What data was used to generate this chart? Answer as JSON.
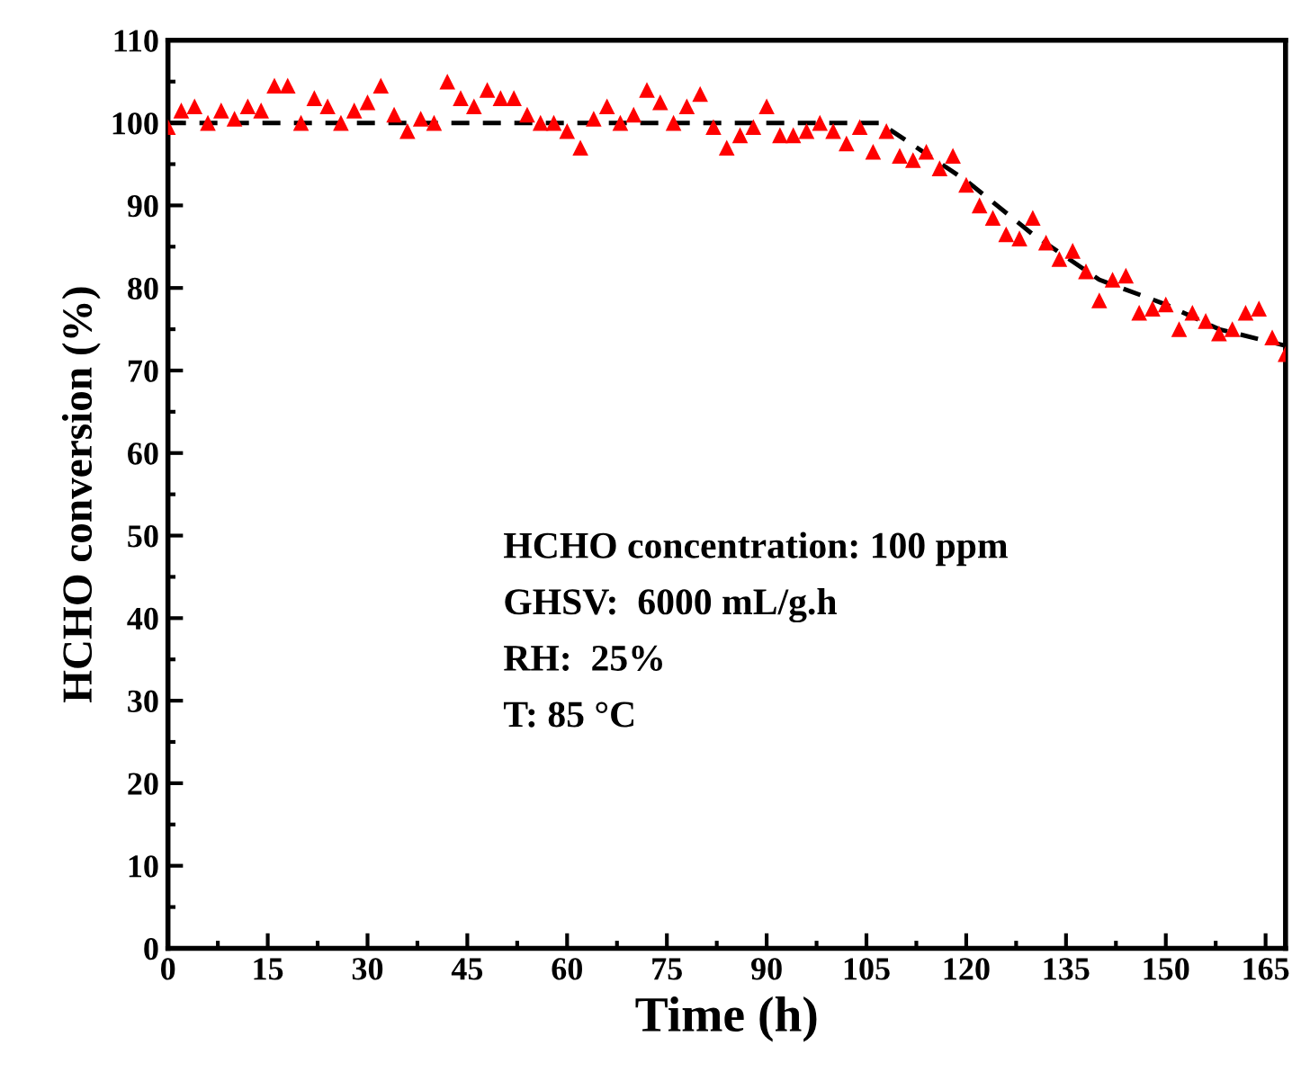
{
  "chart_data": {
    "type": "scatter",
    "xlabel": "Time (h)",
    "ylabel": "HCHO conversion (%)",
    "xlim": [
      0,
      168
    ],
    "xticks": [
      0,
      15,
      30,
      45,
      60,
      75,
      90,
      105,
      120,
      135,
      150,
      165
    ],
    "ylim": [
      0,
      110
    ],
    "yticks": [
      0,
      10,
      20,
      30,
      40,
      50,
      60,
      70,
      80,
      90,
      100,
      110
    ],
    "grid": false,
    "legend": false,
    "annotations": [
      "HCHO concentration: 100 ppm",
      "GHSV:  6000 mL/g.h",
      "RH:  25%",
      "T: 85 °C"
    ],
    "series": [
      {
        "color": "#ff0000",
        "marker": "triangle",
        "x": [
          0,
          2,
          4,
          6,
          8,
          10,
          12,
          14,
          16,
          18,
          20,
          22,
          24,
          26,
          28,
          30,
          32,
          34,
          36,
          38,
          40,
          42,
          44,
          46,
          48,
          50,
          52,
          54,
          56,
          58,
          60,
          62,
          64,
          66,
          68,
          70,
          72,
          74,
          76,
          78,
          80,
          82,
          84,
          86,
          88,
          90,
          92,
          94,
          96,
          98,
          100,
          102,
          104,
          106,
          108,
          110,
          112,
          114,
          116,
          118,
          120,
          122,
          124,
          126,
          128,
          130,
          132,
          134,
          136,
          138,
          140,
          142,
          144,
          146,
          148,
          150,
          152,
          154,
          156,
          158,
          160,
          162,
          164,
          166,
          168
        ],
        "values": [
          99.5,
          101.5,
          102,
          100,
          101.5,
          100.5,
          102,
          101.5,
          104.5,
          104.5,
          100,
          103,
          102,
          100,
          101.5,
          102.5,
          104.5,
          101,
          99,
          100.5,
          100,
          105,
          103,
          102,
          104,
          103,
          103,
          101,
          100,
          100,
          99,
          97,
          100.5,
          102,
          100,
          101,
          104,
          102.5,
          100,
          102,
          103.5,
          99.5,
          97,
          98.5,
          99.5,
          102,
          98.5,
          98.5,
          99,
          100,
          99,
          97.5,
          99.5,
          96.5,
          99,
          96,
          95.5,
          96.5,
          94.5,
          96,
          92.5,
          90,
          88.5,
          86.5,
          86,
          88.5,
          85.5,
          83.5,
          84.5,
          82,
          78.5,
          81,
          81.5,
          77,
          77.5,
          78,
          75,
          77,
          76,
          74.5,
          75,
          77,
          77.5,
          74,
          72
        ]
      },
      {
        "type": "line",
        "color": "#000000",
        "line_style": "dashed",
        "marker": "none",
        "x": [
          0,
          107,
          120,
          130,
          140,
          150,
          158,
          168
        ],
        "values": [
          100,
          100,
          93,
          86.5,
          81,
          78,
          75,
          73
        ]
      }
    ]
  }
}
